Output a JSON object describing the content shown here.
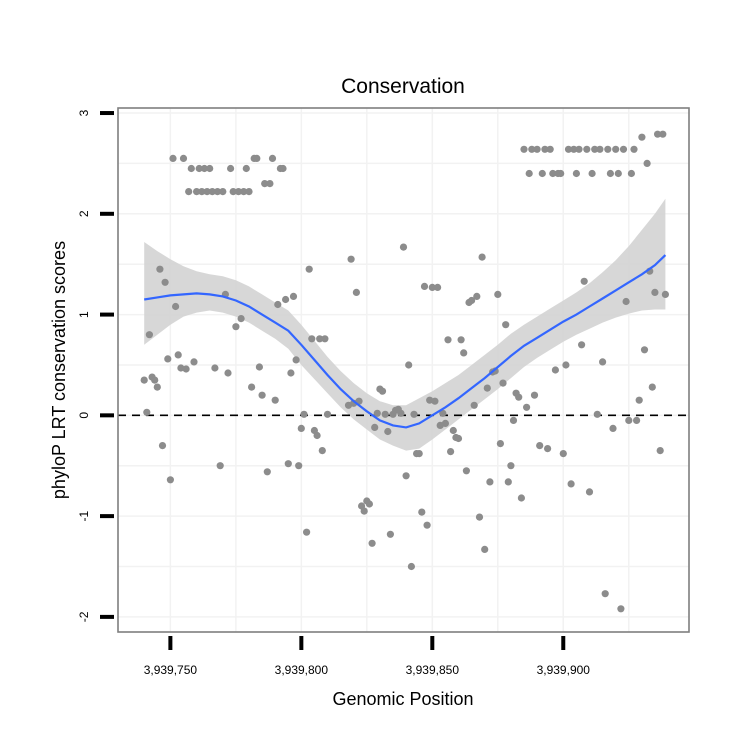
{
  "chart_data": {
    "type": "scatter",
    "title": "Conservation",
    "xlabel": "Genomic Position",
    "ylabel": "phyloP LRT conservation scores",
    "xlim": [
      3939730,
      3939948
    ],
    "ylim": [
      -2.15,
      3.05
    ],
    "x_ticks": [
      {
        "value": 3939750,
        "label": "3,939,750"
      },
      {
        "value": 3939800,
        "label": "3,939,800"
      },
      {
        "value": 3939850,
        "label": "3,939,850"
      },
      {
        "value": 3939900,
        "label": "3,939,900"
      }
    ],
    "y_ticks": [
      {
        "value": -2,
        "label": "-2"
      },
      {
        "value": -1,
        "label": "-1"
      },
      {
        "value": 0,
        "label": "0"
      },
      {
        "value": 1,
        "label": "1"
      },
      {
        "value": 2,
        "label": "2"
      },
      {
        "value": 3,
        "label": "3"
      }
    ],
    "reference_line": {
      "y": 0,
      "style": "dashed"
    },
    "grid": true,
    "colors": {
      "points": "#8c8c8c",
      "smooth": "#3366ff",
      "band": "#d3d3d3",
      "panel_border": "#7f7f7f",
      "grid": "#f2f2f2"
    },
    "series": [
      {
        "name": "scores",
        "points": [
          [
            3939740,
            0.35
          ],
          [
            3939741,
            0.03
          ],
          [
            3939742,
            0.8
          ],
          [
            3939743,
            0.38
          ],
          [
            3939744,
            0.35
          ],
          [
            3939745,
            0.28
          ],
          [
            3939746,
            1.45
          ],
          [
            3939747,
            -0.3
          ],
          [
            3939748,
            1.32
          ],
          [
            3939749,
            0.56
          ],
          [
            3939750,
            -0.64
          ],
          [
            3939751,
            2.55
          ],
          [
            3939752,
            1.08
          ],
          [
            3939753,
            0.6
          ],
          [
            3939754,
            0.47
          ],
          [
            3939755,
            2.55
          ],
          [
            3939756,
            0.46
          ],
          [
            3939757,
            2.22
          ],
          [
            3939758,
            2.45
          ],
          [
            3939759,
            0.53
          ],
          [
            3939760,
            2.22
          ],
          [
            3939761,
            2.45
          ],
          [
            3939762,
            2.22
          ],
          [
            3939763,
            2.45
          ],
          [
            3939764,
            2.22
          ],
          [
            3939765,
            2.45
          ],
          [
            3939766,
            2.22
          ],
          [
            3939767,
            0.47
          ],
          [
            3939768,
            2.22
          ],
          [
            3939769,
            -0.5
          ],
          [
            3939770,
            2.22
          ],
          [
            3939771,
            1.2
          ],
          [
            3939772,
            0.42
          ],
          [
            3939773,
            2.45
          ],
          [
            3939774,
            2.22
          ],
          [
            3939775,
            0.88
          ],
          [
            3939776,
            2.22
          ],
          [
            3939777,
            0.96
          ],
          [
            3939778,
            2.22
          ],
          [
            3939779,
            2.45
          ],
          [
            3939780,
            2.22
          ],
          [
            3939781,
            0.28
          ],
          [
            3939782,
            2.55
          ],
          [
            3939783,
            2.55
          ],
          [
            3939784,
            0.48
          ],
          [
            3939785,
            0.2
          ],
          [
            3939786,
            2.3
          ],
          [
            3939787,
            -0.56
          ],
          [
            3939788,
            2.3
          ],
          [
            3939789,
            2.55
          ],
          [
            3939790,
            0.15
          ],
          [
            3939791,
            1.1
          ],
          [
            3939792,
            2.45
          ],
          [
            3939793,
            2.45
          ],
          [
            3939794,
            1.15
          ],
          [
            3939795,
            -0.48
          ],
          [
            3939796,
            0.42
          ],
          [
            3939797,
            1.18
          ],
          [
            3939798,
            0.55
          ],
          [
            3939799,
            -0.5
          ],
          [
            3939800,
            -0.13
          ],
          [
            3939801,
            0.01
          ],
          [
            3939802,
            -1.16
          ],
          [
            3939803,
            1.45
          ],
          [
            3939804,
            0.76
          ],
          [
            3939805,
            -0.15
          ],
          [
            3939806,
            -0.2
          ],
          [
            3939807,
            0.76
          ],
          [
            3939808,
            -0.35
          ],
          [
            3939809,
            0.76
          ],
          [
            3939810,
            0.01
          ],
          [
            3939818,
            0.1
          ],
          [
            3939819,
            1.55
          ],
          [
            3939820,
            0.12
          ],
          [
            3939821,
            1.22
          ],
          [
            3939822,
            0.14
          ],
          [
            3939823,
            -0.9
          ],
          [
            3939824,
            -0.95
          ],
          [
            3939825,
            -0.85
          ],
          [
            3939826,
            -0.88
          ],
          [
            3939827,
            -1.27
          ],
          [
            3939828,
            -0.12
          ],
          [
            3939829,
            0.02
          ],
          [
            3939830,
            0.26
          ],
          [
            3939831,
            0.24
          ],
          [
            3939832,
            0.01
          ],
          [
            3939833,
            -0.16
          ],
          [
            3939834,
            -1.18
          ],
          [
            3939835,
            0.01
          ],
          [
            3939836,
            0.05
          ],
          [
            3939837,
            0.06
          ],
          [
            3939838,
            0.02
          ],
          [
            3939839,
            1.67
          ],
          [
            3939840,
            -0.6
          ],
          [
            3939841,
            0.5
          ],
          [
            3939842,
            -1.5
          ],
          [
            3939843,
            0.01
          ],
          [
            3939844,
            -0.38
          ],
          [
            3939845,
            -0.38
          ],
          [
            3939846,
            -0.96
          ],
          [
            3939847,
            1.28
          ],
          [
            3939848,
            -1.09
          ],
          [
            3939849,
            0.15
          ],
          [
            3939850,
            1.27
          ],
          [
            3939851,
            0.14
          ],
          [
            3939852,
            1.27
          ],
          [
            3939853,
            -0.1
          ],
          [
            3939854,
            0.02
          ],
          [
            3939855,
            -0.08
          ],
          [
            3939856,
            0.75
          ],
          [
            3939857,
            -0.36
          ],
          [
            3939858,
            -0.15
          ],
          [
            3939859,
            -0.22
          ],
          [
            3939860,
            -0.23
          ],
          [
            3939861,
            0.75
          ],
          [
            3939862,
            0.62
          ],
          [
            3939863,
            -0.55
          ],
          [
            3939864,
            1.12
          ],
          [
            3939865,
            1.14
          ],
          [
            3939866,
            0.1
          ],
          [
            3939867,
            1.18
          ],
          [
            3939868,
            -1.01
          ],
          [
            3939869,
            1.57
          ],
          [
            3939870,
            -1.33
          ],
          [
            3939871,
            0.27
          ],
          [
            3939872,
            -0.66
          ],
          [
            3939873,
            0.43
          ],
          [
            3939874,
            0.44
          ],
          [
            3939875,
            1.2
          ],
          [
            3939876,
            -0.28
          ],
          [
            3939877,
            0.32
          ],
          [
            3939878,
            0.9
          ],
          [
            3939879,
            -0.66
          ],
          [
            3939880,
            -0.5
          ],
          [
            3939881,
            -0.05
          ],
          [
            3939882,
            0.22
          ],
          [
            3939883,
            0.18
          ],
          [
            3939884,
            -0.82
          ],
          [
            3939885,
            2.64
          ],
          [
            3939886,
            0.08
          ],
          [
            3939887,
            2.4
          ],
          [
            3939888,
            2.64
          ],
          [
            3939889,
            0.2
          ],
          [
            3939890,
            2.64
          ],
          [
            3939891,
            -0.3
          ],
          [
            3939892,
            2.4
          ],
          [
            3939893,
            2.64
          ],
          [
            3939894,
            -0.33
          ],
          [
            3939895,
            2.64
          ],
          [
            3939896,
            2.4
          ],
          [
            3939897,
            0.45
          ],
          [
            3939898,
            2.4
          ],
          [
            3939899,
            2.4
          ],
          [
            3939900,
            -0.38
          ],
          [
            3939901,
            0.5
          ],
          [
            3939902,
            2.64
          ],
          [
            3939903,
            -0.68
          ],
          [
            3939904,
            2.64
          ],
          [
            3939905,
            2.4
          ],
          [
            3939906,
            2.64
          ],
          [
            3939907,
            0.7
          ],
          [
            3939908,
            1.33
          ],
          [
            3939909,
            2.64
          ],
          [
            3939910,
            -0.76
          ],
          [
            3939911,
            2.4
          ],
          [
            3939912,
            2.64
          ],
          [
            3939913,
            0.01
          ],
          [
            3939914,
            2.64
          ],
          [
            3939915,
            0.53
          ],
          [
            3939916,
            -1.77
          ],
          [
            3939917,
            2.64
          ],
          [
            3939918,
            2.4
          ],
          [
            3939919,
            -0.13
          ],
          [
            3939920,
            2.64
          ],
          [
            3939921,
            2.4
          ],
          [
            3939922,
            -1.92
          ],
          [
            3939923,
            2.64
          ],
          [
            3939924,
            1.13
          ],
          [
            3939925,
            -0.05
          ],
          [
            3939926,
            2.4
          ],
          [
            3939927,
            2.64
          ],
          [
            3939928,
            -0.05
          ],
          [
            3939929,
            0.15
          ],
          [
            3939930,
            2.76
          ],
          [
            3939931,
            0.65
          ],
          [
            3939932,
            2.5
          ],
          [
            3939933,
            1.43
          ],
          [
            3939934,
            0.28
          ],
          [
            3939935,
            1.22
          ],
          [
            3939936,
            2.79
          ],
          [
            3939937,
            -0.35
          ],
          [
            3939938,
            2.79
          ],
          [
            3939939,
            1.2
          ]
        ]
      }
    ],
    "smooth": {
      "method": "loess",
      "x": [
        3939740,
        3939745,
        3939750,
        3939755,
        3939760,
        3939765,
        3939770,
        3939775,
        3939780,
        3939785,
        3939790,
        3939795,
        3939800,
        3939805,
        3939810,
        3939815,
        3939820,
        3939825,
        3939830,
        3939835,
        3939840,
        3939845,
        3939850,
        3939855,
        3939860,
        3939865,
        3939870,
        3939875,
        3939880,
        3939885,
        3939890,
        3939895,
        3939900,
        3939905,
        3939910,
        3939915,
        3939920,
        3939925,
        3939930,
        3939935,
        3939939
      ],
      "y": [
        1.15,
        1.17,
        1.19,
        1.2,
        1.21,
        1.2,
        1.18,
        1.14,
        1.08,
        1.0,
        0.92,
        0.84,
        0.7,
        0.55,
        0.4,
        0.26,
        0.14,
        0.04,
        -0.05,
        -0.1,
        -0.12,
        -0.08,
        0.0,
        0.08,
        0.17,
        0.27,
        0.37,
        0.48,
        0.59,
        0.69,
        0.77,
        0.85,
        0.93,
        1.0,
        1.08,
        1.16,
        1.24,
        1.32,
        1.4,
        1.49,
        1.59
      ],
      "lower": [
        0.7,
        0.8,
        0.9,
        0.98,
        1.02,
        1.04,
        1.02,
        0.98,
        0.92,
        0.84,
        0.76,
        0.66,
        0.5,
        0.36,
        0.22,
        0.08,
        -0.04,
        -0.14,
        -0.24,
        -0.3,
        -0.35,
        -0.33,
        -0.24,
        -0.14,
        -0.04,
        0.06,
        0.16,
        0.26,
        0.37,
        0.48,
        0.57,
        0.65,
        0.73,
        0.8,
        0.86,
        0.92,
        0.97,
        1.01,
        1.04,
        1.05,
        1.05
      ],
      "upper": [
        1.72,
        1.63,
        1.55,
        1.48,
        1.43,
        1.4,
        1.38,
        1.34,
        1.28,
        1.2,
        1.12,
        1.04,
        0.9,
        0.74,
        0.58,
        0.44,
        0.32,
        0.22,
        0.14,
        0.1,
        0.1,
        0.17,
        0.24,
        0.32,
        0.4,
        0.5,
        0.6,
        0.7,
        0.81,
        0.9,
        0.98,
        1.06,
        1.14,
        1.22,
        1.31,
        1.42,
        1.54,
        1.68,
        1.84,
        2.0,
        2.15
      ]
    }
  }
}
